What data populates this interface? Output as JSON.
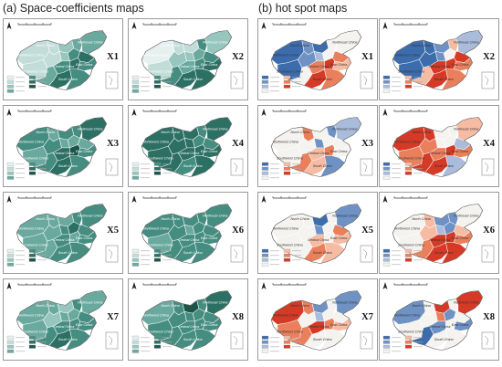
{
  "titles": {
    "left": "(a) Space-coefficients maps",
    "right": "(b) hot spot maps"
  },
  "colors": {
    "coef_scale": [
      "#e6f1ef",
      "#c2ddd8",
      "#96c6bd",
      "#6aa99e",
      "#458d80",
      "#2c6f63",
      "#1b5449"
    ],
    "hot_scale": [
      "#3d6cad",
      "#6f92c5",
      "#a9bcdb",
      "#f4f3ef",
      "#f6bba3",
      "#ea7f5c",
      "#d43a26"
    ],
    "background": "#ffffff",
    "border": "#9a9a9a"
  },
  "panels": {
    "coefficients": [
      {
        "label": "X1",
        "fill": [
          1,
          1,
          1,
          1,
          2,
          2,
          4,
          3,
          3,
          5,
          3,
          4,
          5,
          4,
          5,
          4
        ]
      },
      {
        "label": "X2",
        "fill": [
          0,
          1,
          1,
          2,
          1,
          2,
          3,
          4,
          2,
          4,
          4,
          3,
          4,
          5,
          5,
          5
        ]
      },
      {
        "label": "X3",
        "fill": [
          4,
          3,
          3,
          4,
          4,
          3,
          3,
          4,
          5,
          3,
          4,
          5,
          6,
          4,
          5,
          4
        ]
      },
      {
        "label": "X4",
        "fill": [
          5,
          5,
          5,
          5,
          5,
          5,
          4,
          4,
          5,
          4,
          5,
          5,
          5,
          5,
          4,
          5
        ]
      },
      {
        "label": "X5",
        "fill": [
          3,
          3,
          3,
          3,
          3,
          4,
          5,
          4,
          4,
          4,
          3,
          4,
          3,
          4,
          4,
          4
        ]
      },
      {
        "label": "X6",
        "fill": [
          4,
          3,
          4,
          4,
          4,
          3,
          4,
          4,
          4,
          4,
          4,
          4,
          4,
          4,
          4,
          4
        ]
      },
      {
        "label": "X7",
        "fill": [
          3,
          3,
          3,
          2,
          2,
          3,
          3,
          4,
          3,
          4,
          4,
          4,
          4,
          4,
          5,
          4
        ]
      },
      {
        "label": "X8",
        "fill": [
          3,
          4,
          4,
          4,
          6,
          4,
          4,
          4,
          5,
          4,
          4,
          4,
          4,
          4,
          4,
          4
        ]
      }
    ],
    "hotspots": [
      {
        "label": "X1",
        "fill": [
          0,
          0,
          1,
          1,
          0,
          2,
          3,
          3,
          3,
          5,
          3,
          5,
          6,
          4,
          6,
          5
        ]
      },
      {
        "label": "X2",
        "fill": [
          0,
          0,
          0,
          0,
          1,
          1,
          3,
          4,
          2,
          6,
          4,
          6,
          6,
          5,
          6,
          5
        ]
      },
      {
        "label": "X3",
        "fill": [
          3,
          3,
          5,
          3,
          3,
          1,
          3,
          1,
          2,
          3,
          5,
          4,
          5,
          3,
          4,
          1
        ]
      },
      {
        "label": "X4",
        "fill": [
          6,
          5,
          6,
          5,
          3,
          3,
          3,
          3,
          4,
          2,
          6,
          5,
          6,
          5,
          6,
          2
        ]
      },
      {
        "label": "X5",
        "fill": [
          3,
          3,
          3,
          3,
          0,
          1,
          3,
          3,
          1,
          5,
          3,
          4,
          3,
          4,
          5,
          4
        ]
      },
      {
        "label": "X6",
        "fill": [
          3,
          3,
          4,
          4,
          1,
          2,
          1,
          1,
          3,
          4,
          5,
          6,
          6,
          5,
          6,
          6
        ]
      },
      {
        "label": "X7",
        "fill": [
          6,
          5,
          5,
          3,
          1,
          2,
          3,
          3,
          1,
          3,
          5,
          6,
          5,
          4,
          3,
          3
        ]
      },
      {
        "label": "X8",
        "fill": [
          1,
          3,
          3,
          3,
          6,
          5,
          1,
          3,
          6,
          3,
          0,
          1,
          3,
          1,
          3,
          3
        ]
      }
    ]
  },
  "map_labels": [
    "Northwest China",
    "North China",
    "Northeast China",
    "East China",
    "Central China",
    "South China",
    "Southwest China"
  ]
}
